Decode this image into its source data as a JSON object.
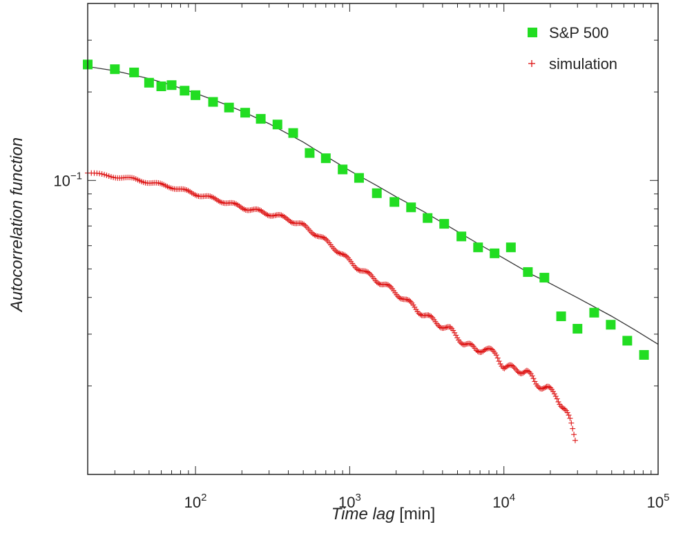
{
  "chart_data": {
    "type": "scatter",
    "xscale": "log",
    "yscale": "log",
    "xlim": [
      20,
      100000
    ],
    "ylim": [
      0.01,
      0.4
    ],
    "grid": false,
    "legend_position": "top-right",
    "xlabel": {
      "italic": "Time lag",
      "plain": " [min]"
    },
    "ylabel": "Autocorrelation function",
    "x_ticks": [
      {
        "value": 100,
        "base": "10",
        "exp": "2"
      },
      {
        "value": 1000,
        "base": "10",
        "exp": "3"
      },
      {
        "value": 10000,
        "base": "10",
        "exp": "4"
      },
      {
        "value": 100000,
        "base": "10",
        "exp": "5"
      }
    ],
    "y_ticks": [
      {
        "value": 0.1,
        "base": "10",
        "exp": "−1"
      }
    ],
    "series": [
      {
        "name": "S&P 500",
        "marker": "square",
        "color": "#22dd22",
        "x": [
          20,
          30,
          40,
          50,
          60,
          70,
          85,
          100,
          130,
          165,
          210,
          265,
          340,
          430,
          550,
          700,
          900,
          1150,
          1500,
          1950,
          2500,
          3200,
          4100,
          5300,
          6800,
          8700,
          11100,
          14300,
          18300,
          23500,
          30000,
          38500,
          49300,
          63100,
          81000
        ],
        "y": [
          0.248,
          0.239,
          0.233,
          0.215,
          0.209,
          0.211,
          0.202,
          0.195,
          0.185,
          0.177,
          0.17,
          0.162,
          0.155,
          0.145,
          0.124,
          0.119,
          0.109,
          0.102,
          0.0905,
          0.0845,
          0.081,
          0.0745,
          0.0712,
          0.0645,
          0.0592,
          0.0565,
          0.0592,
          0.0488,
          0.0467,
          0.0345,
          0.0313,
          0.0355,
          0.0323,
          0.0285,
          0.0255
        ]
      },
      {
        "name": "simulation",
        "marker": "plus",
        "color": "#dd1111",
        "points": [
          [
            20,
            0.106
          ],
          [
            40,
            0.101
          ],
          [
            70,
            0.095
          ],
          [
            100,
            0.09
          ],
          [
            150,
            0.085
          ],
          [
            200,
            0.081
          ],
          [
            300,
            0.077
          ],
          [
            400,
            0.074
          ],
          [
            500,
            0.07
          ],
          [
            600,
            0.066
          ],
          [
            800,
            0.059
          ],
          [
            1000,
            0.053
          ],
          [
            1300,
            0.048
          ],
          [
            1700,
            0.044
          ],
          [
            2200,
            0.04
          ],
          [
            2800,
            0.036
          ],
          [
            3600,
            0.033
          ],
          [
            4500,
            0.031
          ],
          [
            5500,
            0.028
          ],
          [
            6600,
            0.0265
          ],
          [
            7500,
            0.0268
          ],
          [
            9000,
            0.0255
          ],
          [
            10000,
            0.0232
          ],
          [
            12000,
            0.0228
          ],
          [
            14000,
            0.0224
          ],
          [
            16000,
            0.0205
          ],
          [
            19000,
            0.0196
          ],
          [
            22000,
            0.0185
          ],
          [
            25000,
            0.0165
          ],
          [
            27000,
            0.015
          ],
          [
            29000,
            0.0132
          ]
        ]
      }
    ],
    "fit_curve": {
      "color": "#333333",
      "x": [
        20,
        30,
        50,
        70,
        100,
        150,
        200,
        300,
        500,
        700,
        1000,
        1500,
        2000,
        3000,
        5000,
        7000,
        10000,
        15000,
        20000,
        30000,
        50000,
        70000,
        100000
      ],
      "y": [
        0.244,
        0.236,
        0.222,
        0.211,
        0.198,
        0.183,
        0.172,
        0.156,
        0.135,
        0.121,
        0.108,
        0.096,
        0.088,
        0.0785,
        0.067,
        0.0604,
        0.0543,
        0.048,
        0.0446,
        0.0399,
        0.0345,
        0.0311,
        0.0277
      ]
    }
  }
}
